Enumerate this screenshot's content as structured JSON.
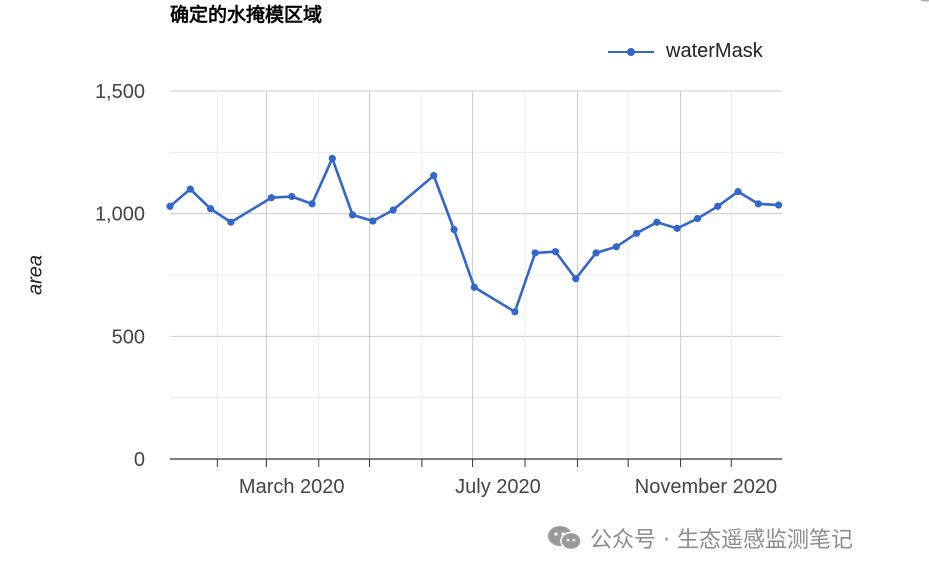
{
  "chart_data": {
    "type": "line",
    "title": "确定的水掩模区域",
    "xlabel": "",
    "ylabel": "area",
    "ylim": [
      0,
      1500
    ],
    "y_ticks": [
      0,
      500,
      1000,
      1500
    ],
    "y_tick_labels": [
      "0",
      "500",
      "1,000",
      "1,500"
    ],
    "x_range": [
      "2020-01-04",
      "2020-12-31"
    ],
    "x_tick_labels": [
      {
        "date": "2020-03-01",
        "label": "March 2020"
      },
      {
        "date": "2020-07-01",
        "label": "July 2020"
      },
      {
        "date": "2020-11-01",
        "label": "November 2020"
      }
    ],
    "grid": true,
    "legend_position": "top-right",
    "series": [
      {
        "name": "waterMask",
        "color": "#3366cc",
        "points": [
          {
            "x": "2020-01-04",
            "y": 1030
          },
          {
            "x": "2020-01-16",
            "y": 1100
          },
          {
            "x": "2020-01-28",
            "y": 1020
          },
          {
            "x": "2020-02-09",
            "y": 965
          },
          {
            "x": "2020-03-04",
            "y": 1065
          },
          {
            "x": "2020-03-16",
            "y": 1070
          },
          {
            "x": "2020-03-28",
            "y": 1040
          },
          {
            "x": "2020-04-09",
            "y": 1225
          },
          {
            "x": "2020-04-21",
            "y": 995
          },
          {
            "x": "2020-05-03",
            "y": 970
          },
          {
            "x": "2020-05-15",
            "y": 1015
          },
          {
            "x": "2020-06-08",
            "y": 1155
          },
          {
            "x": "2020-06-20",
            "y": 935
          },
          {
            "x": "2020-07-02",
            "y": 700
          },
          {
            "x": "2020-07-26",
            "y": 600
          },
          {
            "x": "2020-08-07",
            "y": 840
          },
          {
            "x": "2020-08-19",
            "y": 845
          },
          {
            "x": "2020-08-31",
            "y": 735
          },
          {
            "x": "2020-09-12",
            "y": 840
          },
          {
            "x": "2020-09-24",
            "y": 865
          },
          {
            "x": "2020-10-06",
            "y": 920
          },
          {
            "x": "2020-10-18",
            "y": 965
          },
          {
            "x": "2020-10-30",
            "y": 940
          },
          {
            "x": "2020-11-11",
            "y": 980
          },
          {
            "x": "2020-11-23",
            "y": 1030
          },
          {
            "x": "2020-12-05",
            "y": 1090
          },
          {
            "x": "2020-12-17",
            "y": 1040
          },
          {
            "x": "2020-12-29",
            "y": 1035
          }
        ]
      }
    ]
  },
  "watermark": {
    "text": "公众号 · 生态遥感监测笔记",
    "icon": "wechat-icon",
    "color": "#8c8c8c"
  }
}
